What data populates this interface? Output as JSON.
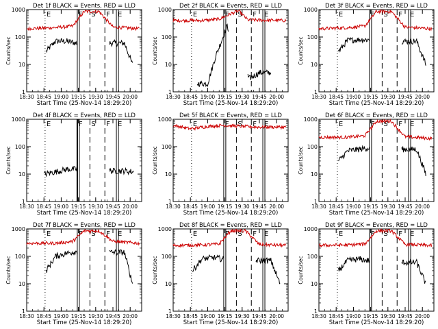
{
  "figure": {
    "ylabel": "Counts/sec",
    "xlabel": "Start Time (25-Nov-14 18:29:20)",
    "x_tick_labels": [
      "18:30",
      "18:45",
      "19:00",
      "19:15",
      "19:30",
      "19:45",
      "20:00"
    ],
    "y_tick_labels": [
      "1",
      "10",
      "100",
      "1000"
    ],
    "marker_labels": [
      "E",
      "F",
      "S",
      "F",
      "E"
    ],
    "black_color": "#000000",
    "red_color": "#cc0000"
  },
  "chart_data": [
    {
      "type": "line",
      "title": "Det 1f BLACK = Events, RED = LLD",
      "xlabel": "Start Time (25-Nov-14 18:29:20)",
      "ylabel": "Counts/sec",
      "yscale": "log",
      "ylim": [
        1,
        1000
      ],
      "xlim": [
        "18:30",
        "20:10"
      ],
      "black_start": "18:47",
      "red_level": 200,
      "black_level": 70,
      "gap": "19:14-19:42",
      "series": [
        {
          "name": "Events",
          "color": "black",
          "x": [
            "18:47",
            "18:55",
            "19:05",
            "19:13",
            "19:43",
            "19:55",
            "20:02"
          ],
          "y": [
            30,
            70,
            70,
            60,
            60,
            60,
            10
          ]
        },
        {
          "name": "LLD",
          "color": "red",
          "x": [
            "18:30",
            "18:55",
            "19:10",
            "19:20",
            "19:33",
            "19:45",
            "20:08"
          ],
          "y": [
            200,
            220,
            250,
            850,
            850,
            230,
            200
          ]
        }
      ]
    },
    {
      "type": "line",
      "title": "Det 2f BLACK = Events, RED = LLD",
      "xlabel": "Start Time (25-Nov-14 18:29:20)",
      "ylabel": "Counts/sec",
      "yscale": "log",
      "ylim": [
        1,
        1000
      ],
      "xlim": [
        "18:30",
        "20:10"
      ],
      "black_start": "18:51",
      "red_level": 400,
      "black_level": 250,
      "gap": "19:18-19:35",
      "series": [
        {
          "name": "Events",
          "color": "black",
          "x": [
            "18:51",
            "19:00",
            "19:07",
            "19:17",
            "19:36",
            "19:45",
            "19:55"
          ],
          "y": [
            2,
            2,
            20,
            250,
            3,
            5,
            5
          ]
        },
        {
          "name": "LLD",
          "color": "red",
          "x": [
            "18:30",
            "18:55",
            "19:10",
            "19:20",
            "19:27",
            "19:35",
            "20:08"
          ],
          "y": [
            400,
            400,
            450,
            700,
            900,
            420,
            400
          ]
        }
      ]
    },
    {
      "type": "line",
      "title": "Det 3f BLACK = Events, RED = LLD",
      "xlabel": "Start Time (25-Nov-14 18:29:20)",
      "ylabel": "Counts/sec",
      "yscale": "log",
      "ylim": [
        1,
        1000
      ],
      "xlim": [
        "18:30",
        "20:10"
      ],
      "black_start": "18:47",
      "red_level": 200,
      "black_level": 80,
      "gap": "19:14-19:42",
      "series": [
        {
          "name": "Events",
          "color": "black",
          "x": [
            "18:47",
            "18:55",
            "19:05",
            "19:13",
            "19:43",
            "19:55",
            "20:03"
          ],
          "y": [
            30,
            75,
            80,
            80,
            70,
            70,
            10
          ]
        },
        {
          "name": "LLD",
          "color": "red",
          "x": [
            "18:30",
            "18:55",
            "19:10",
            "19:20",
            "19:33",
            "19:45",
            "20:08"
          ],
          "y": [
            200,
            220,
            250,
            850,
            850,
            230,
            200
          ]
        }
      ]
    },
    {
      "type": "line",
      "title": "Det 4f BLACK = Events, RED = LLD",
      "xlabel": "Start Time (25-Nov-14 18:29:20)",
      "ylabel": "Counts/sec",
      "yscale": "log",
      "ylim": [
        1,
        1000
      ],
      "xlim": [
        "18:30",
        "20:10"
      ],
      "black_start": "18:45",
      "red_level": 0,
      "black_level": 13,
      "gap": "19:14-19:42",
      "series": [
        {
          "name": "Events",
          "color": "black",
          "x": [
            "18:45",
            "18:55",
            "19:05",
            "19:13",
            "19:43",
            "19:55",
            "20:03"
          ],
          "y": [
            10,
            12,
            15,
            15,
            13,
            13,
            12
          ]
        }
      ]
    },
    {
      "type": "line",
      "title": "Det 5f BLACK = Events, RED = LLD",
      "xlabel": "Start Time (25-Nov-14 18:29:20)",
      "ylabel": "Counts/sec",
      "yscale": "log",
      "ylim": [
        1,
        1000
      ],
      "xlim": [
        "18:30",
        "20:10"
      ],
      "black_start": "",
      "red_level": 550,
      "black_level": 0,
      "gap": "19:14-19:42",
      "series": [
        {
          "name": "LLD",
          "color": "red",
          "x": [
            "18:30",
            "18:45",
            "19:00",
            "19:13",
            "19:43",
            "20:08"
          ],
          "y": [
            600,
            450,
            550,
            600,
            520,
            520
          ]
        }
      ]
    },
    {
      "type": "line",
      "title": "Det 6f BLACK = Events, RED = LLD",
      "xlabel": "Start Time (25-Nov-14 18:29:20)",
      "ylabel": "Counts/sec",
      "yscale": "log",
      "ylim": [
        1,
        1000
      ],
      "xlim": [
        "18:30",
        "20:10"
      ],
      "black_start": "18:47",
      "red_level": 220,
      "black_level": 80,
      "gap": "19:14-19:42",
      "series": [
        {
          "name": "Events",
          "color": "black",
          "x": [
            "18:47",
            "18:55",
            "19:05",
            "19:13",
            "19:43",
            "19:55",
            "20:03"
          ],
          "y": [
            30,
            70,
            80,
            90,
            80,
            80,
            10
          ]
        },
        {
          "name": "LLD",
          "color": "red",
          "x": [
            "18:30",
            "18:55",
            "19:10",
            "19:20",
            "19:33",
            "19:45",
            "20:08"
          ],
          "y": [
            220,
            220,
            250,
            850,
            850,
            230,
            200
          ]
        }
      ]
    },
    {
      "type": "line",
      "title": "Det 7f BLACK = Events, RED = LLD",
      "xlabel": "Start Time (25-Nov-14 18:29:20)",
      "ylabel": "Counts/sec",
      "yscale": "log",
      "ylim": [
        1,
        1000
      ],
      "xlim": [
        "18:30",
        "20:10"
      ],
      "black_start": "18:47",
      "red_level": 300,
      "black_level": 150,
      "gap": "19:14-19:42",
      "series": [
        {
          "name": "Events",
          "color": "black",
          "x": [
            "18:47",
            "18:55",
            "19:05",
            "19:13",
            "19:43",
            "19:55",
            "20:02"
          ],
          "y": [
            30,
            100,
            130,
            150,
            140,
            140,
            10
          ]
        },
        {
          "name": "LLD",
          "color": "red",
          "x": [
            "18:30",
            "18:55",
            "19:10",
            "19:20",
            "19:33",
            "19:45",
            "20:08"
          ],
          "y": [
            300,
            300,
            350,
            850,
            850,
            350,
            300
          ]
        }
      ]
    },
    {
      "type": "line",
      "title": "Det 8f BLACK = Events, RED = LLD",
      "xlabel": "Start Time (25-Nov-14 18:29:20)",
      "ylabel": "Counts/sec",
      "yscale": "log",
      "ylim": [
        1,
        1000
      ],
      "xlim": [
        "18:30",
        "20:10"
      ],
      "black_start": "18:47",
      "red_level": 250,
      "black_level": 80,
      "gap": "19:14-19:42",
      "series": [
        {
          "name": "Events",
          "color": "black",
          "x": [
            "18:47",
            "18:55",
            "19:05",
            "19:13",
            "19:43",
            "19:55",
            "20:03"
          ],
          "y": [
            30,
            80,
            90,
            80,
            70,
            70,
            10
          ]
        },
        {
          "name": "LLD",
          "color": "red",
          "x": [
            "18:30",
            "18:55",
            "19:10",
            "19:20",
            "19:33",
            "19:45",
            "20:08"
          ],
          "y": [
            250,
            260,
            280,
            850,
            850,
            270,
            250
          ]
        }
      ]
    },
    {
      "type": "line",
      "title": "Det 9f BLACK = Events, RED = LLD",
      "xlabel": "Start Time (25-Nov-14 18:29:20)",
      "ylabel": "Counts/sec",
      "yscale": "log",
      "ylim": [
        1,
        1000
      ],
      "xlim": [
        "18:30",
        "20:10"
      ],
      "black_start": "18:47",
      "red_level": 250,
      "black_level": 70,
      "gap": "19:14-19:42",
      "series": [
        {
          "name": "Events",
          "color": "black",
          "x": [
            "18:47",
            "18:55",
            "19:05",
            "19:13",
            "19:43",
            "19:55",
            "20:03"
          ],
          "y": [
            30,
            70,
            80,
            70,
            60,
            60,
            10
          ]
        },
        {
          "name": "LLD",
          "color": "red",
          "x": [
            "18:30",
            "18:55",
            "19:10",
            "19:20",
            "19:33",
            "19:45",
            "20:08"
          ],
          "y": [
            250,
            260,
            280,
            850,
            850,
            270,
            250
          ]
        }
      ]
    }
  ]
}
